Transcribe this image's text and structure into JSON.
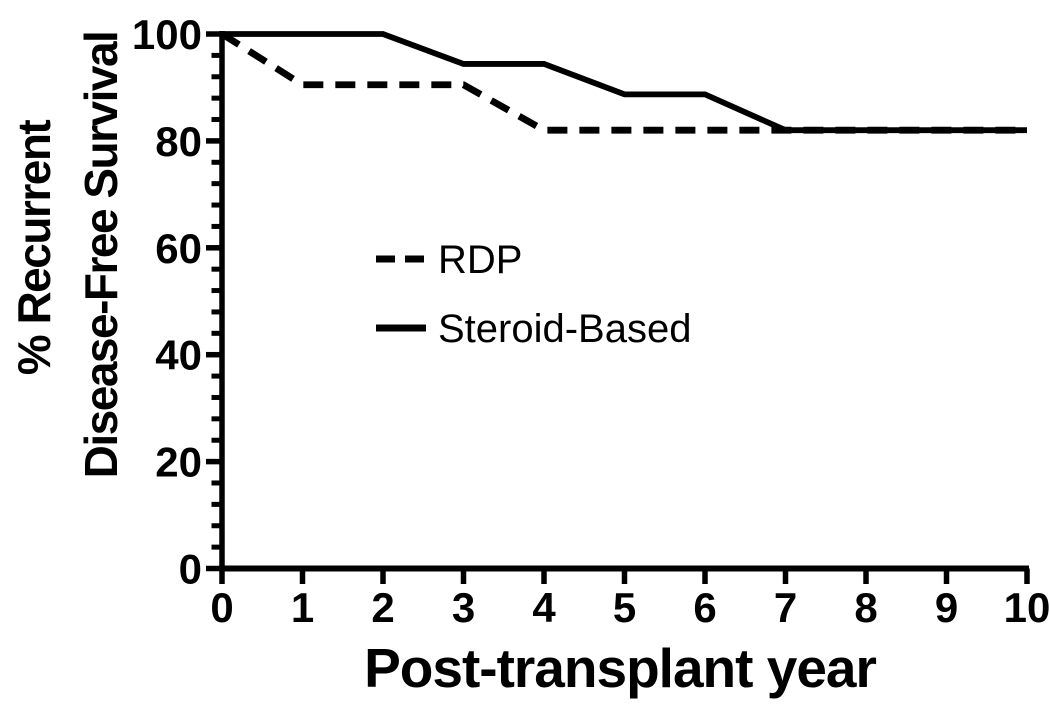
{
  "figure": {
    "background_color": "#ffffff",
    "ink_color": "#000000"
  },
  "chart_data": {
    "type": "line",
    "chart_kind": "kaplan-meier-survival-curve",
    "title": "",
    "xlabel": "Post-transplant year",
    "ylabel_line1": "% Recurrent",
    "ylabel_line2": "Disease-Free Survival",
    "xlim": [
      0,
      10
    ],
    "ylim": [
      0,
      100
    ],
    "x_ticks": [
      0,
      1,
      2,
      3,
      4,
      5,
      6,
      7,
      8,
      9,
      10
    ],
    "y_ticks": [
      0,
      20,
      40,
      60,
      80,
      100
    ],
    "y_minor_tick_step": 4,
    "grid": "off",
    "legend_position": "inside-center-left",
    "series": [
      {
        "name": "RDP",
        "line_style": "dashed",
        "x": [
          0,
          1,
          3,
          4,
          10
        ],
        "y": [
          100,
          90.5,
          90.5,
          82,
          82
        ]
      },
      {
        "name": "Steroid-Based",
        "line_style": "solid",
        "x": [
          0,
          2,
          3,
          4,
          5,
          6,
          7,
          10
        ],
        "y": [
          100,
          100,
          94.4,
          94.4,
          88.7,
          88.7,
          82,
          82
        ]
      }
    ]
  },
  "legend": {
    "items": [
      {
        "label": "RDP",
        "style": "dashed"
      },
      {
        "label": "Steroid-Based",
        "style": "solid"
      }
    ]
  }
}
